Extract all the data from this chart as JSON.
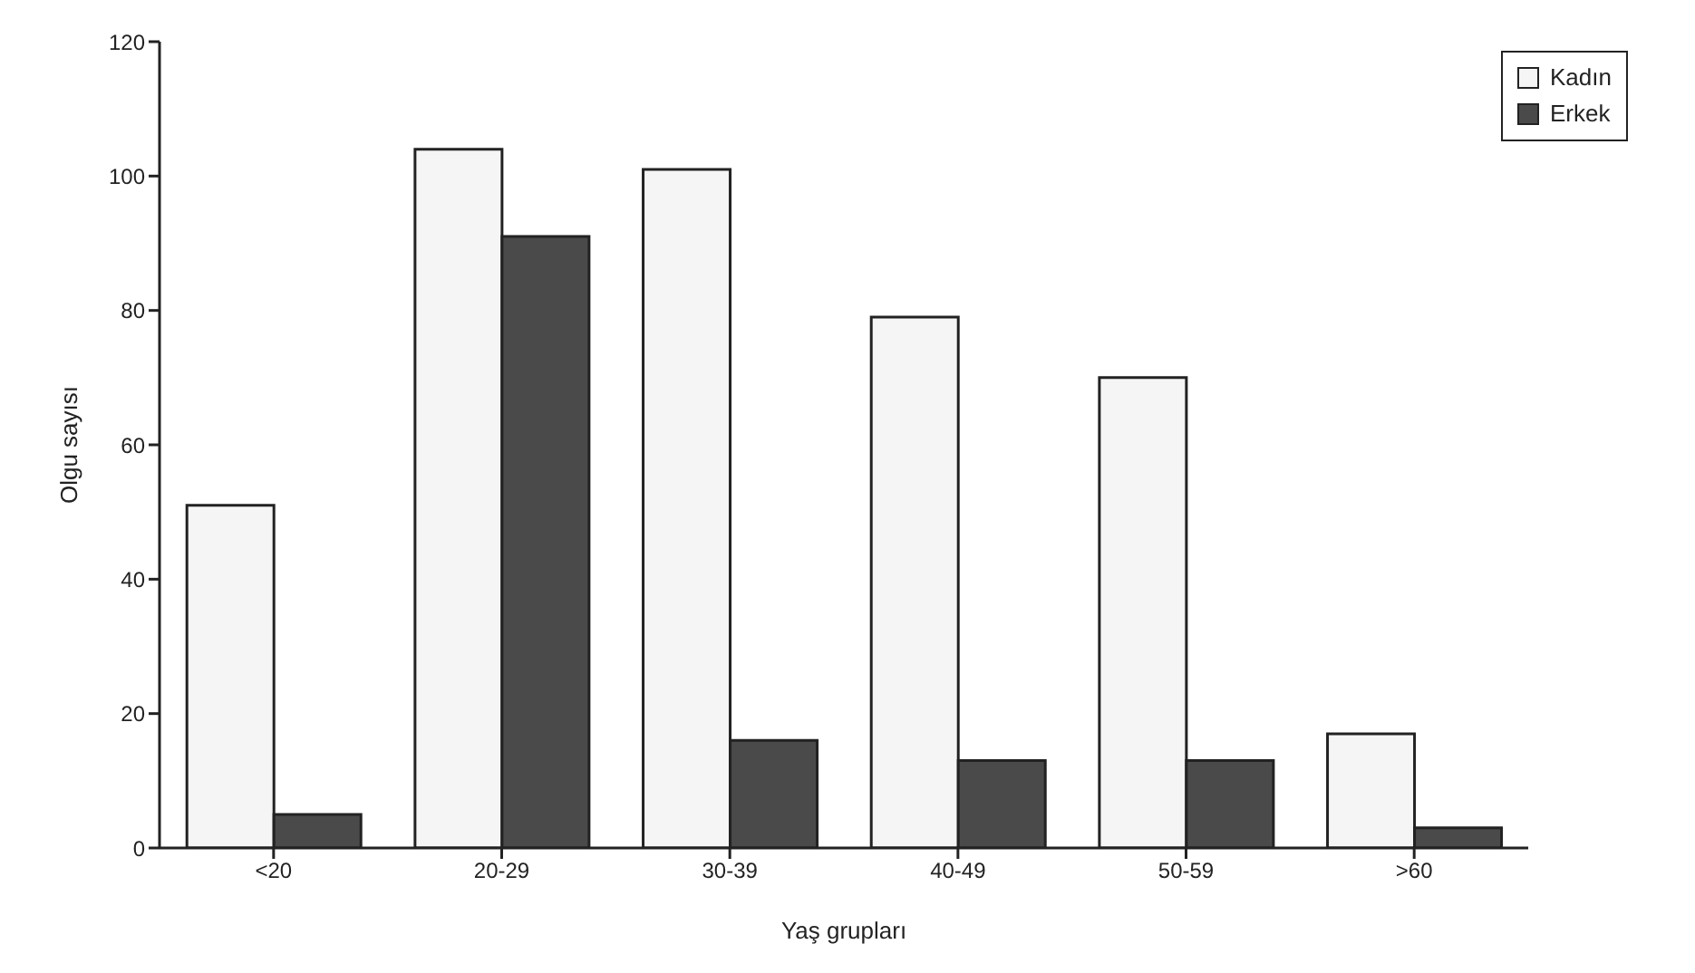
{
  "chart_data": {
    "type": "bar",
    "xlabel": "Yaş grupları",
    "ylabel": "Olgu sayısı",
    "categories": [
      "<20",
      "20-29",
      "30-39",
      "40-49",
      "50-59",
      ">60"
    ],
    "series": [
      {
        "name": "Kadın",
        "color": "#f5f5f5",
        "values": [
          51,
          104,
          101,
          79,
          70,
          17
        ]
      },
      {
        "name": "Erkek",
        "color": "#4a4a4a",
        "values": [
          5,
          91,
          16,
          13,
          13,
          3
        ]
      }
    ],
    "ylim": [
      0,
      120
    ],
    "yticks": [
      0,
      20,
      40,
      60,
      80,
      100,
      120
    ],
    "grid": false,
    "legend": "top right"
  }
}
